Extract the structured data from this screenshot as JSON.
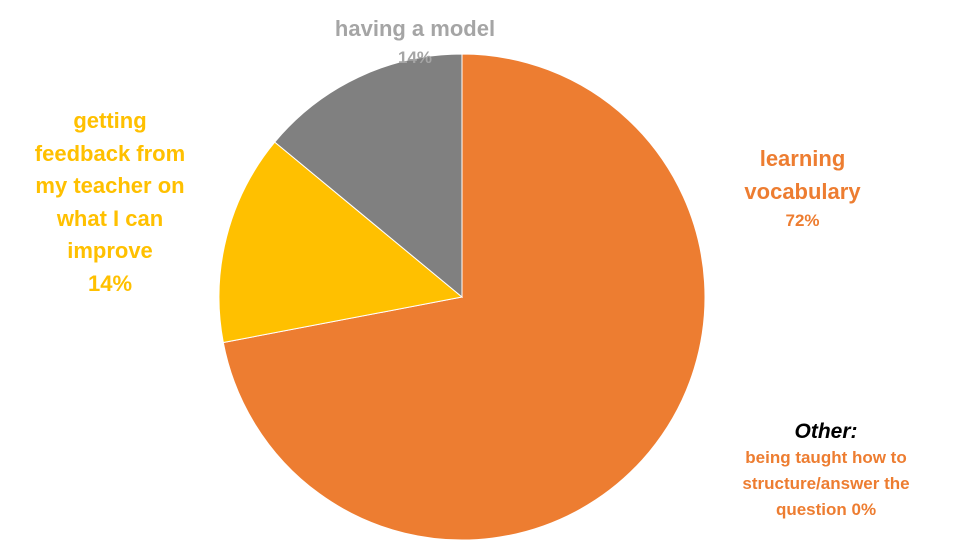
{
  "chart_data": {
    "type": "pie",
    "slices": [
      {
        "label": "learning vocabulary",
        "value": 72,
        "pct_label": "72%",
        "color": "#ED7D31"
      },
      {
        "label": "being taught how to structure/answer the question",
        "value": 0,
        "pct_label": "0%",
        "color": "#ED7D31"
      },
      {
        "label": "getting feedback from my teacher on what I can improve",
        "value": 14,
        "pct_label": "14%",
        "color": "#FFC000"
      },
      {
        "label": "having a model",
        "value": 14,
        "pct_label": "14%",
        "color": "#808080"
      }
    ],
    "annotations": {
      "model_label": "having a model",
      "model_pct": "14%",
      "feedback_lines": [
        "getting",
        "feedback from",
        "my teacher on",
        "what I can",
        "improve"
      ],
      "feedback_pct": "14%",
      "vocab_lines": [
        "learning",
        "vocabulary"
      ],
      "vocab_pct": "72%",
      "other_title": "Other:",
      "other_lines": [
        "being taught how to",
        "structure/answer the",
        "question  0%"
      ]
    },
    "label_colors": {
      "model": "#A5A5A5",
      "feedback": "#FFC000",
      "vocab": "#ED7D31",
      "other": "#ED7D31"
    }
  }
}
